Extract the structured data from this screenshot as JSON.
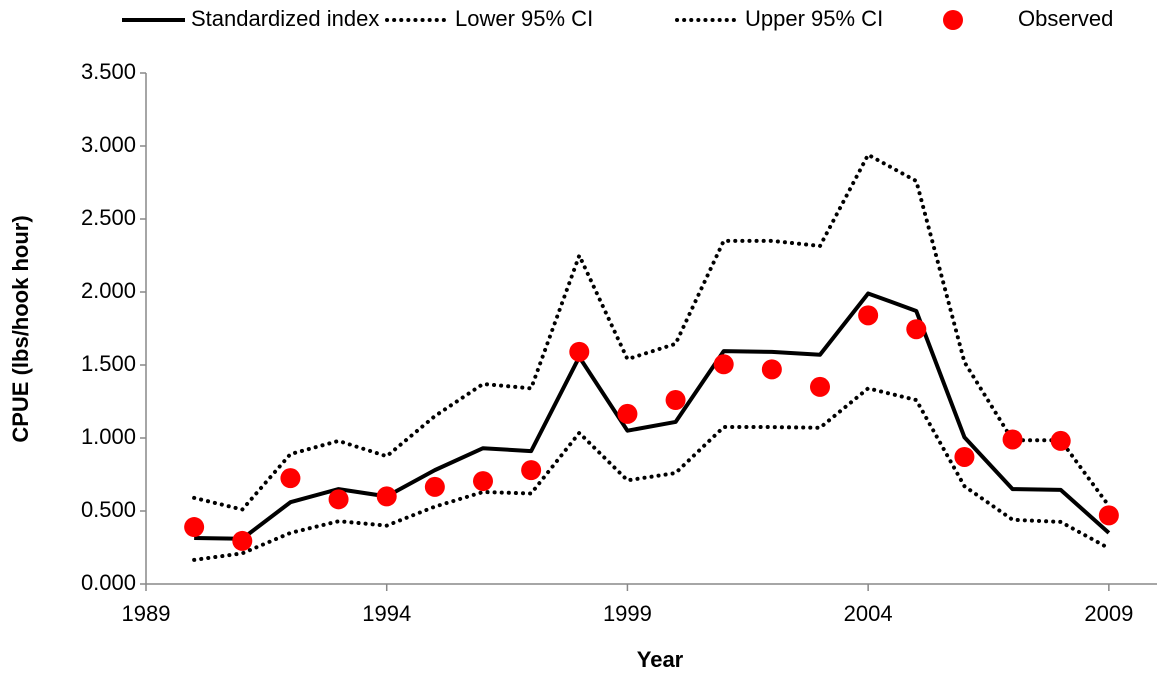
{
  "chart_data": {
    "type": "line",
    "x_label": "Year",
    "y_label": "CPUE (lbs/hook hour)",
    "x": [
      1990,
      1991,
      1992,
      1993,
      1994,
      1995,
      1996,
      1997,
      1998,
      1999,
      2000,
      2001,
      2002,
      2003,
      2004,
      2005,
      2006,
      2007,
      2008,
      2009
    ],
    "series": [
      {
        "name": "Standardized index",
        "color": "#000000",
        "style": "solid",
        "values": [
          0.315,
          0.31,
          0.56,
          0.65,
          0.6,
          0.78,
          0.93,
          0.91,
          1.555,
          1.05,
          1.11,
          1.595,
          1.59,
          1.57,
          1.99,
          1.87,
          1.005,
          0.65,
          0.645,
          0.35
        ]
      },
      {
        "name": "Lower 95% CI",
        "color": "#000000",
        "style": "dotted",
        "values": [
          0.165,
          0.21,
          0.35,
          0.43,
          0.4,
          0.53,
          0.63,
          0.62,
          1.035,
          0.71,
          0.76,
          1.075,
          1.075,
          1.07,
          1.34,
          1.26,
          0.67,
          0.44,
          0.425,
          0.245
        ]
      },
      {
        "name": "Upper 95% CI",
        "color": "#000000",
        "style": "dotted",
        "values": [
          0.59,
          0.51,
          0.89,
          0.98,
          0.875,
          1.15,
          1.37,
          1.34,
          2.25,
          1.54,
          1.645,
          2.35,
          2.35,
          2.315,
          2.94,
          2.76,
          1.52,
          0.985,
          0.985,
          0.535
        ]
      },
      {
        "name": "Observed",
        "color": "#ff0000",
        "style": "marker",
        "values": [
          0.39,
          0.295,
          0.725,
          0.58,
          0.6,
          0.665,
          0.705,
          0.78,
          1.59,
          1.165,
          1.26,
          1.505,
          1.47,
          1.35,
          1.84,
          1.745,
          0.87,
          0.99,
          0.98,
          0.47
        ]
      }
    ],
    "xlim": [
      1989,
      2010
    ],
    "xticks": [
      1989,
      1994,
      1999,
      2004,
      2009
    ],
    "ylim": [
      0,
      3.5
    ],
    "yticks": [
      {
        "value": 0,
        "label": "0.000"
      },
      {
        "value": 0.5,
        "label": "0.500"
      },
      {
        "value": 1,
        "label": "1.000"
      },
      {
        "value": 1.5,
        "label": "1.500"
      },
      {
        "value": 2,
        "label": "2.000"
      },
      {
        "value": 2.5,
        "label": "2.500"
      },
      {
        "value": 3,
        "label": "3.000"
      },
      {
        "value": 3.5,
        "label": "3.500"
      }
    ],
    "legend": "top",
    "grid": false
  }
}
